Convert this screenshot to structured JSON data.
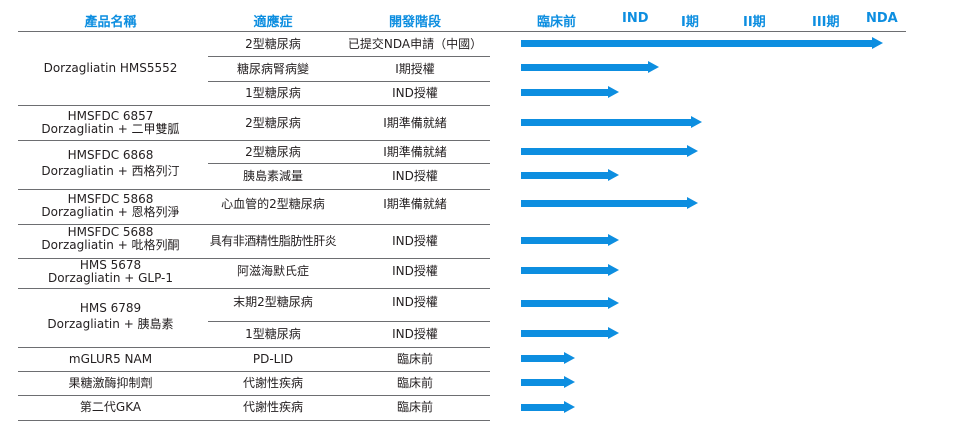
{
  "header": {
    "col_product": "產品名稱",
    "col_indication": "適應症",
    "col_stage": "開發階段",
    "stages": [
      "臨床前",
      "IND",
      "I期",
      "II期",
      "III期",
      "NDA"
    ],
    "header_color": "#0d8ee0",
    "arrow_color": "#0d8ee0"
  },
  "products": [
    {
      "name": "Dorzagliatin HMS5552"
    },
    {
      "line1": "HMSFDC 6857",
      "line2": "Dorzagliatin + 二甲雙胍"
    },
    {
      "line1": "HMSFDC 6868",
      "line2": "Dorzagliatin + 西格列汀"
    },
    {
      "line1": "HMSFDC 5868",
      "line2": "Dorzagliatin + 恩格列淨"
    },
    {
      "line1": "HMSFDC 5688",
      "line2": "Dorzagliatin + 吡格列酮"
    },
    {
      "line1": "HMS 5678",
      "line2": "Dorzagliatin + GLP-1"
    },
    {
      "line1": "HMS 6789",
      "line2": "Dorzagliatin + 胰島素"
    },
    {
      "name": "mGLUR5 NAM"
    },
    {
      "name": "果糖激酶抑制劑"
    },
    {
      "name": "第二代GKA"
    }
  ],
  "rows": [
    {
      "indication": "2型糖尿病",
      "stage": "已提交NDA申請（中國）",
      "progress": 1.0
    },
    {
      "indication": "糖尿病腎病變",
      "stage": "I期授權",
      "progress": 0.38
    },
    {
      "indication": "1型糖尿病",
      "stage": "IND授權",
      "progress": 0.27
    },
    {
      "indication": "2型糖尿病",
      "stage": "I期準備就緒",
      "progress": 0.5
    },
    {
      "indication": "2型糖尿病",
      "stage": "I期準備就緒",
      "progress": 0.49
    },
    {
      "indication": "胰島素減量",
      "stage": "IND授權",
      "progress": 0.27
    },
    {
      "indication": "心血管的2型糖尿病",
      "stage": "I期準備就緒",
      "progress": 0.49
    },
    {
      "indication": "具有非酒精性脂肪性肝炎",
      "stage": "IND授權",
      "progress": 0.27
    },
    {
      "indication": "阿滋海默氏症",
      "stage": "IND授權",
      "progress": 0.27
    },
    {
      "indication": "末期2型糖尿病",
      "stage": "IND授權",
      "progress": 0.27
    },
    {
      "indication": "1型糖尿病",
      "stage": "IND授權",
      "progress": 0.27
    },
    {
      "indication": "PD-LID",
      "stage": "臨床前",
      "progress": 0.15
    },
    {
      "indication": "代謝性疾病",
      "stage": "臨床前",
      "progress": 0.15
    },
    {
      "indication": "代謝性疾病",
      "stage": "臨床前",
      "progress": 0.15
    }
  ]
}
